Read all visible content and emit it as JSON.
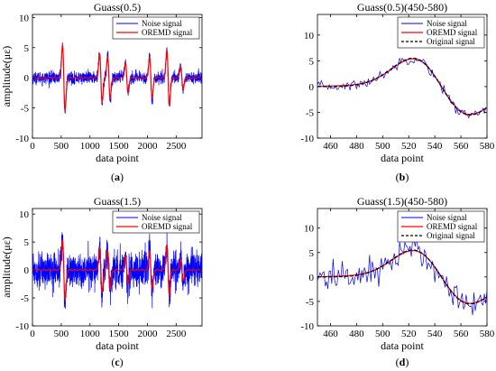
{
  "chart_data": [
    {
      "type": "line",
      "panel_label": "(a)",
      "title": "Guass(0.5)",
      "xlabel": "data point",
      "ylabel": "amplitude(με)",
      "xlim": [
        0,
        2950
      ],
      "ylim": [
        -10,
        10.5
      ],
      "xticks": [
        0,
        500,
        1000,
        1500,
        2000,
        2500
      ],
      "yticks": [
        -10,
        -5,
        0,
        5,
        10
      ],
      "legend_position": "top-right",
      "noise_sigma": 0.5,
      "pulses": [
        {
          "center": 545,
          "amplitude": 5.5
        },
        {
          "center": 1190,
          "amplitude": 4.0
        },
        {
          "center": 1330,
          "amplitude": 3.5
        },
        {
          "center": 1640,
          "amplitude": 2.5
        },
        {
          "center": 2060,
          "amplitude": 3.5
        },
        {
          "center": 2360,
          "amplitude": 4.5
        },
        {
          "center": 2600,
          "amplitude": 2.0
        }
      ],
      "series": [
        {
          "name": "Noise signal",
          "color": "#0000ff",
          "style": "solid",
          "kind": "noise"
        },
        {
          "name": "OREMD signal",
          "color": "#ff0000",
          "style": "solid",
          "kind": "clean"
        }
      ]
    },
    {
      "type": "line",
      "panel_label": "(b)",
      "title": "Guass(0.5)(450-580)",
      "xlabel": "data point",
      "ylabel": "",
      "xlim": [
        450,
        580
      ],
      "ylim": [
        -10,
        14
      ],
      "xticks": [
        460,
        480,
        500,
        520,
        540,
        560,
        580
      ],
      "yticks": [
        -10,
        -5,
        0,
        5,
        10
      ],
      "legend_position": "top-right",
      "noise_sigma": 0.5,
      "pulses": [
        {
          "center": 545,
          "amplitude": 5.5
        }
      ],
      "series": [
        {
          "name": "Noise signal",
          "color": "#0000ff",
          "style": "solid",
          "kind": "noise"
        },
        {
          "name": "OREMD signal",
          "color": "#ff0000",
          "style": "solid",
          "kind": "clean"
        },
        {
          "name": "Original signal",
          "color": "#000000",
          "style": "dashed",
          "kind": "clean"
        }
      ]
    },
    {
      "type": "line",
      "panel_label": "(c)",
      "title": "Guass(1.5)",
      "xlabel": "data point",
      "ylabel": "amplitude(με)",
      "xlim": [
        0,
        2950
      ],
      "ylim": [
        -10,
        11
      ],
      "xticks": [
        0,
        500,
        1000,
        1500,
        2000,
        2500
      ],
      "yticks": [
        -10,
        -5,
        0,
        5,
        10
      ],
      "legend_position": "top-right",
      "noise_sigma": 1.5,
      "pulses": [
        {
          "center": 545,
          "amplitude": 5.5
        },
        {
          "center": 1190,
          "amplitude": 4.0
        },
        {
          "center": 1330,
          "amplitude": 3.5
        },
        {
          "center": 1640,
          "amplitude": 2.5
        },
        {
          "center": 2060,
          "amplitude": 3.5
        },
        {
          "center": 2360,
          "amplitude": 4.5
        },
        {
          "center": 2600,
          "amplitude": 2.0
        }
      ],
      "series": [
        {
          "name": "Noise signal",
          "color": "#0000ff",
          "style": "solid",
          "kind": "noise"
        },
        {
          "name": "OREMD signal",
          "color": "#ff0000",
          "style": "solid",
          "kind": "clean"
        }
      ]
    },
    {
      "type": "line",
      "panel_label": "(d)",
      "title": "Guass(1.5)(450-580)",
      "xlabel": "data point",
      "ylabel": "",
      "xlim": [
        450,
        580
      ],
      "ylim": [
        -10,
        14
      ],
      "xticks": [
        460,
        480,
        500,
        520,
        540,
        560,
        580
      ],
      "yticks": [
        -10,
        -5,
        0,
        5,
        10
      ],
      "legend_position": "top-right",
      "noise_sigma": 1.5,
      "pulses": [
        {
          "center": 545,
          "amplitude": 5.5
        }
      ],
      "series": [
        {
          "name": "Noise signal",
          "color": "#0000ff",
          "style": "solid",
          "kind": "noise"
        },
        {
          "name": "OREMD signal",
          "color": "#ff0000",
          "style": "solid",
          "kind": "clean"
        },
        {
          "name": "Original signal",
          "color": "#000000",
          "style": "dashed",
          "kind": "clean"
        }
      ]
    }
  ]
}
